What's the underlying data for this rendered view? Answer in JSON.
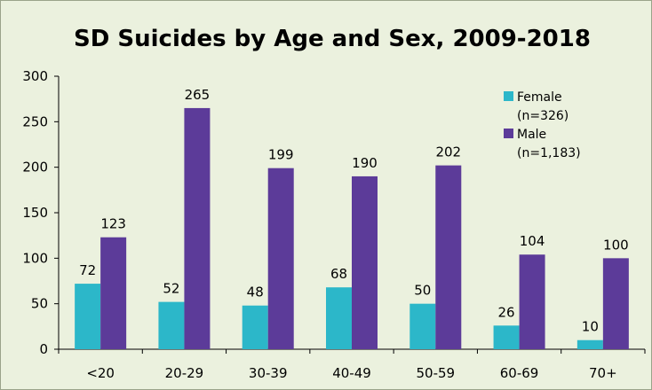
{
  "chart_data": {
    "type": "bar",
    "title": "SD Suicides by Age and Sex, 2009-2018",
    "xlabel": "",
    "ylabel": "",
    "categories": [
      "<20",
      "20-29",
      "30-39",
      "40-49",
      "50-59",
      "60-69",
      "70+"
    ],
    "series": [
      {
        "name": "Female",
        "legend_lines": [
          "Female",
          "(n=326)"
        ],
        "values": [
          72,
          52,
          48,
          68,
          50,
          26,
          10
        ],
        "color": "#2cb7c9"
      },
      {
        "name": "Male",
        "legend_lines": [
          "Male",
          "(n=1,183)"
        ],
        "values": [
          123,
          265,
          199,
          190,
          202,
          104,
          100
        ],
        "color": "#5c3b99"
      }
    ],
    "ylim": [
      0,
      300
    ],
    "yticks": [
      0,
      50,
      100,
      150,
      200,
      250,
      300
    ],
    "grid": false,
    "legend_position": "top-right",
    "background_color": "#ebf1de"
  }
}
